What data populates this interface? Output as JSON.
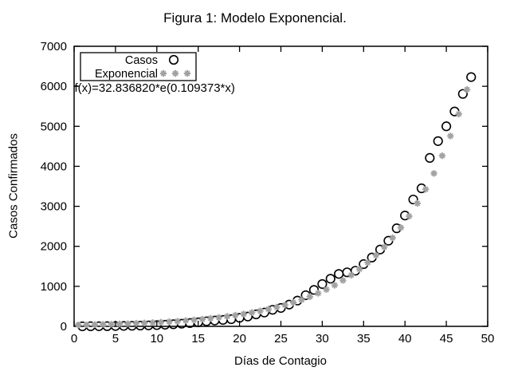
{
  "chart_data": {
    "type": "scatter",
    "title": "Figura 1: Modelo Exponencial.",
    "xlabel": "Días de Contagio",
    "ylabel": "Casos Confirmados",
    "xlim": [
      0,
      50
    ],
    "ylim": [
      0,
      7000
    ],
    "x_ticks": [
      0,
      5,
      10,
      15,
      20,
      25,
      30,
      35,
      40,
      45,
      50
    ],
    "y_ticks": [
      0,
      1000,
      2000,
      3000,
      4000,
      5000,
      6000,
      7000
    ],
    "grid": false,
    "legend_position": "top-left",
    "annotation": "f(x)=32.836820*e(0.109373*x)",
    "fit_coefficients": {
      "a": 32.83682,
      "b": 0.109373
    },
    "colors": {
      "casos": "#000000",
      "exponencial": "#a2a2a2",
      "axis": "#000000"
    },
    "series": [
      {
        "name": "Casos",
        "marker": "open-circle",
        "color": "#000000",
        "x": [
          1,
          2,
          3,
          4,
          5,
          6,
          7,
          8,
          9,
          10,
          11,
          12,
          13,
          14,
          15,
          16,
          17,
          18,
          19,
          20,
          21,
          22,
          23,
          24,
          25,
          26,
          27,
          28,
          29,
          30,
          31,
          32,
          33,
          34,
          35,
          36,
          37,
          38,
          39,
          40,
          41,
          42,
          43,
          44,
          45,
          46,
          47,
          48
        ],
        "y": [
          1,
          2,
          3,
          5,
          8,
          11,
          14,
          19,
          24,
          31,
          40,
          52,
          66,
          82,
          100,
          126,
          145,
          160,
          179,
          213,
          245,
          299,
          345,
          413,
          459,
          544,
          644,
          778,
          911,
          1057,
          1190,
          1310,
          1350,
          1390,
          1555,
          1720,
          1920,
          2140,
          2450,
          2770,
          3170,
          3450,
          4210,
          4630,
          5000,
          5370,
          5810,
          6230
        ]
      },
      {
        "name": "Exponencial",
        "marker": "asterisk",
        "color": "#a2a2a2",
        "x": [
          0.5,
          1.5,
          2.5,
          3.5,
          4.5,
          5.5,
          6.5,
          7.5,
          8.5,
          9.5,
          10.5,
          11.5,
          12.5,
          13.5,
          14.5,
          15.5,
          16.5,
          17.5,
          18.5,
          19.5,
          20.5,
          21.5,
          22.5,
          23.5,
          24.5,
          25.5,
          26.5,
          27.5,
          28.5,
          29.5,
          30.5,
          31.5,
          32.5,
          33.5,
          34.5,
          35.5,
          36.5,
          37.5,
          38.5,
          39.5,
          40.5,
          41.5,
          42.5,
          43.5,
          44.5,
          45.5,
          46.5,
          47.5
        ],
        "y": [
          35,
          39,
          43,
          48,
          54,
          60,
          67,
          75,
          83,
          93,
          104,
          116,
          129,
          144,
          160,
          179,
          200,
          223,
          248,
          277,
          309,
          345,
          385,
          429,
          479,
          534,
          596,
          664,
          741,
          827,
          922,
          1029,
          1148,
          1281,
          1429,
          1594,
          1778,
          1983,
          2212,
          2468,
          2753,
          3072,
          3427,
          3823,
          4264,
          4757,
          5307,
          5920
        ]
      }
    ]
  }
}
